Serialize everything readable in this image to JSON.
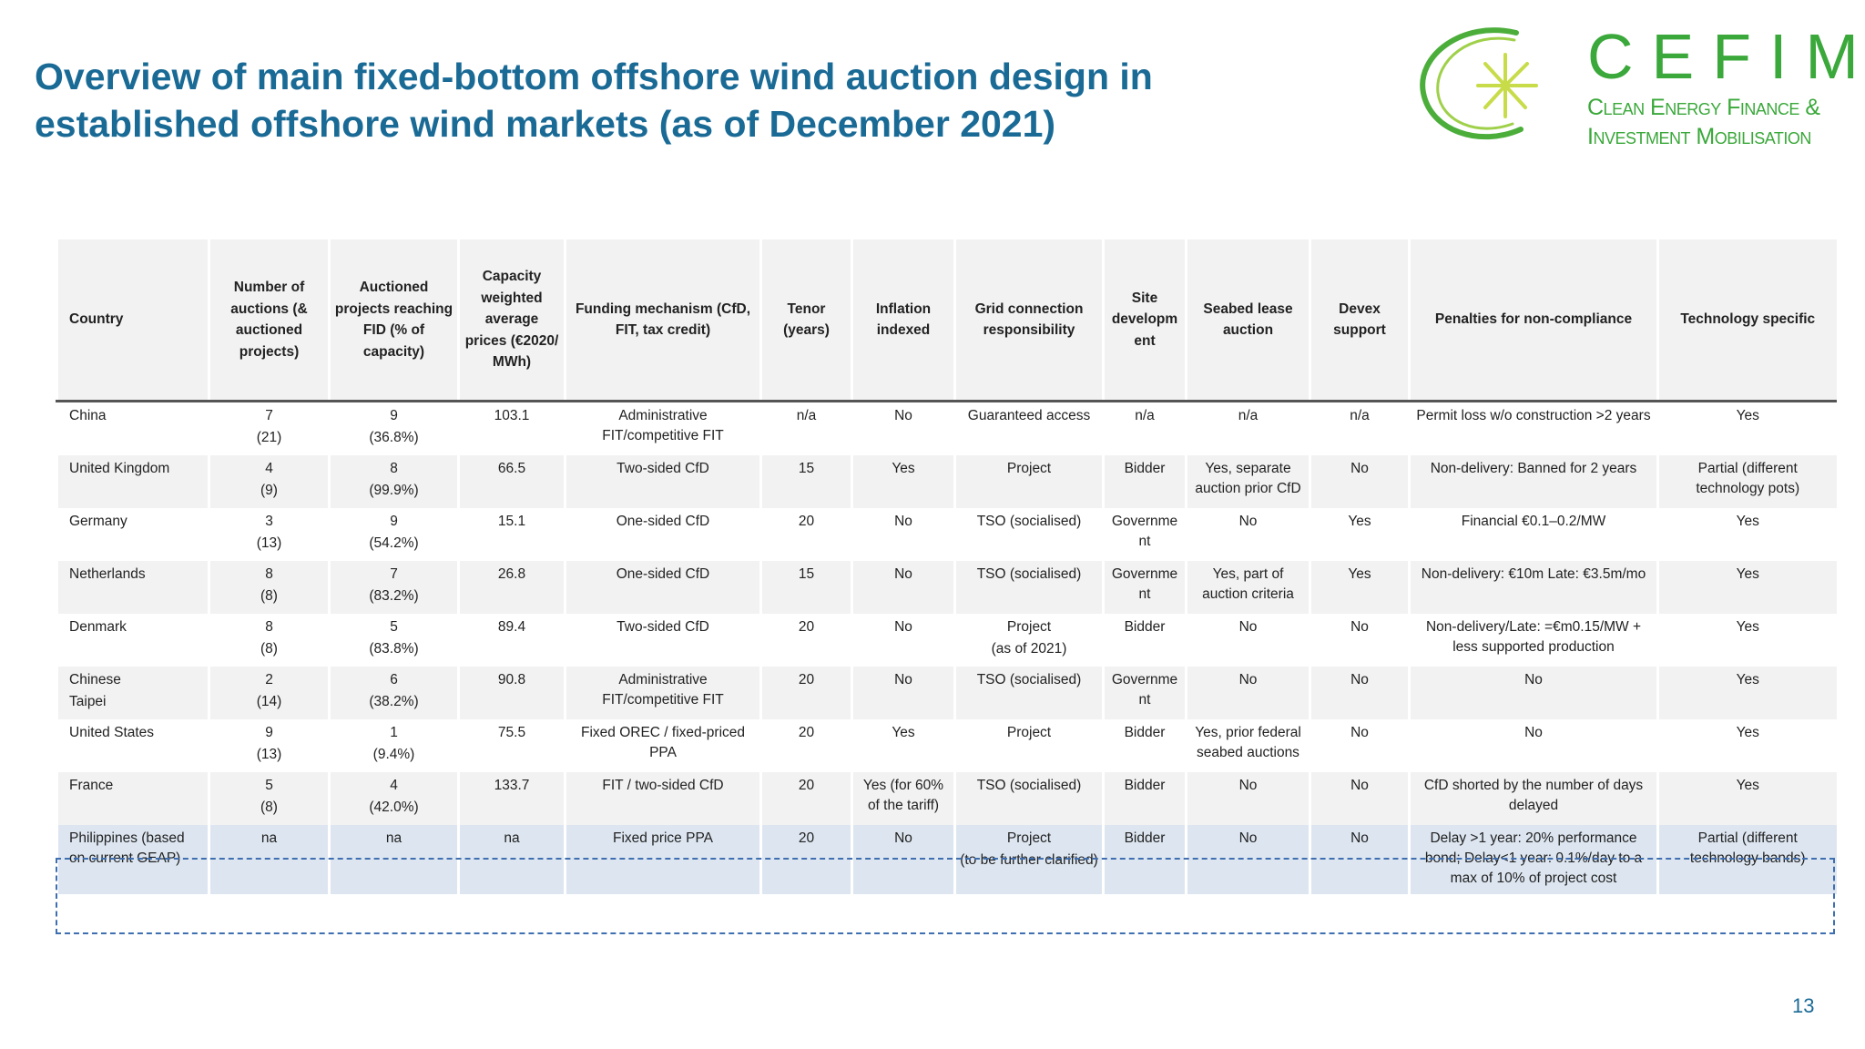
{
  "title": {
    "line1": "Overview of main fixed-bottom offshore wind auction design in",
    "line2": "established offshore wind markets (as of December 2021)"
  },
  "logo": {
    "word": "CEFIM",
    "line1": "Clean Energy Finance &",
    "line2": "Investment Mobilisation",
    "color": "#3aa83a"
  },
  "table": {
    "headers": [
      "Country",
      "Number of auctions (& auctioned projects)",
      "Auctioned projects reaching FID (% of capacity)",
      "Capacity weighted average prices (€2020/ MWh)",
      "Funding mechanism (CfD, FIT, tax credit)",
      "Tenor (years)",
      "Inflation indexed",
      "Grid connection responsibility",
      "Site developm ent",
      "Seabed lease auction",
      "Devex support",
      "Penalties for non-compliance",
      "Technology specific"
    ],
    "rows": [
      {
        "country": "China",
        "auctions": "7",
        "auctions_sub": "(21)",
        "fid": "9",
        "fid_sub": "(36.8%)",
        "price": "103.1",
        "funding": "Administrative FIT/competitive FIT",
        "tenor": "n/a",
        "inflation": "No",
        "grid": "Guaranteed access",
        "grid_sub": "",
        "site": "n/a",
        "seabed": "n/a",
        "devex": "n/a",
        "penalties": "Permit loss w/o construction >2 years",
        "tech": "Yes"
      },
      {
        "country": "United Kingdom",
        "auctions": "4",
        "auctions_sub": "(9)",
        "fid": "8",
        "fid_sub": "(99.9%)",
        "price": "66.5",
        "funding": "Two-sided CfD",
        "tenor": "15",
        "inflation": "Yes",
        "grid": "Project",
        "grid_sub": "",
        "site": "Bidder",
        "seabed": "Yes, separate auction prior CfD",
        "devex": "No",
        "penalties": "Non-delivery: Banned for 2 years",
        "tech": "Partial (different technology pots)"
      },
      {
        "country": "Germany",
        "auctions": "3",
        "auctions_sub": "(13)",
        "fid": "9",
        "fid_sub": "(54.2%)",
        "price": "15.1",
        "funding": "One-sided CfD",
        "tenor": "20",
        "inflation": "No",
        "grid": "TSO (socialised)",
        "grid_sub": "",
        "site": "Governme nt",
        "seabed": "No",
        "devex": "Yes",
        "penalties": "Financial €0.1–0.2/MW",
        "tech": "Yes"
      },
      {
        "country": "Netherlands",
        "auctions": "8",
        "auctions_sub": "(8)",
        "fid": "7",
        "fid_sub": "(83.2%)",
        "price": "26.8",
        "funding": "One-sided CfD",
        "tenor": "15",
        "inflation": "No",
        "grid": "TSO (socialised)",
        "grid_sub": "",
        "site": "Governme nt",
        "seabed": "Yes, part of auction criteria",
        "devex": "Yes",
        "penalties": "Non-delivery: €10m Late: €3.5m/mo",
        "tech": "Yes"
      },
      {
        "country": "Denmark",
        "auctions": "8",
        "auctions_sub": "(8)",
        "fid": "5",
        "fid_sub": "(83.8%)",
        "price": "89.4",
        "funding": "Two-sided CfD",
        "tenor": "20",
        "inflation": "No",
        "grid": "Project",
        "grid_sub": "(as of 2021)",
        "site": "Bidder",
        "seabed": "No",
        "devex": "No",
        "penalties": "Non-delivery/Late: =€m0.15/MW + less supported production",
        "tech": "Yes"
      },
      {
        "country": "Chinese",
        "country_sub": "Taipei",
        "auctions": "2",
        "auctions_sub": "(14)",
        "fid": "6",
        "fid_sub": "(38.2%)",
        "price": "90.8",
        "funding": "Administrative FIT/competitive FIT",
        "tenor": "20",
        "inflation": "No",
        "grid": "TSO (socialised)",
        "grid_sub": "",
        "site": "Governme nt",
        "seabed": "No",
        "devex": "No",
        "penalties": "No",
        "tech": "Yes"
      },
      {
        "country": "United States",
        "auctions": "9",
        "auctions_sub": "(13)",
        "fid": "1",
        "fid_sub": "(9.4%)",
        "price": "75.5",
        "funding": "Fixed OREC / fixed-priced PPA",
        "tenor": "20",
        "inflation": "Yes",
        "grid": "Project",
        "grid_sub": "",
        "site": "Bidder",
        "seabed": "Yes, prior federal seabed auctions",
        "devex": "No",
        "penalties": "No",
        "tech": "Yes"
      },
      {
        "country": "France",
        "auctions": "5",
        "auctions_sub": "(8)",
        "fid": "4",
        "fid_sub": "(42.0%)",
        "price": "133.7",
        "funding": "FIT / two-sided CfD",
        "tenor": "20",
        "inflation": "Yes (for 60% of the tariff)",
        "grid": "TSO (socialised)",
        "grid_sub": "",
        "site": "Bidder",
        "seabed": "No",
        "devex": "No",
        "penalties": "CfD shorted by the number of days delayed",
        "tech": "Yes"
      },
      {
        "country": "Philippines (based on current GEAP)",
        "auctions": "na",
        "auctions_sub": "",
        "fid": "na",
        "fid_sub": "",
        "price": "na",
        "funding": "Fixed price PPA",
        "tenor": "20",
        "inflation": "No",
        "grid": "Project",
        "grid_sub": "(to be further clarified)",
        "site": "Bidder",
        "seabed": "No",
        "devex": "No",
        "penalties": "Delay >1 year: 20% performance bond; Delay<1 year: 0.1%/day to a max of 10% of project cost",
        "tech": "Partial (different technology bands)"
      }
    ]
  },
  "page_number": "13",
  "colors": {
    "title": "#1a6a96",
    "header_bg": "#f2f2f2",
    "highlight_bg": "#dde6f0",
    "highlight_border": "#3f6fb0"
  }
}
